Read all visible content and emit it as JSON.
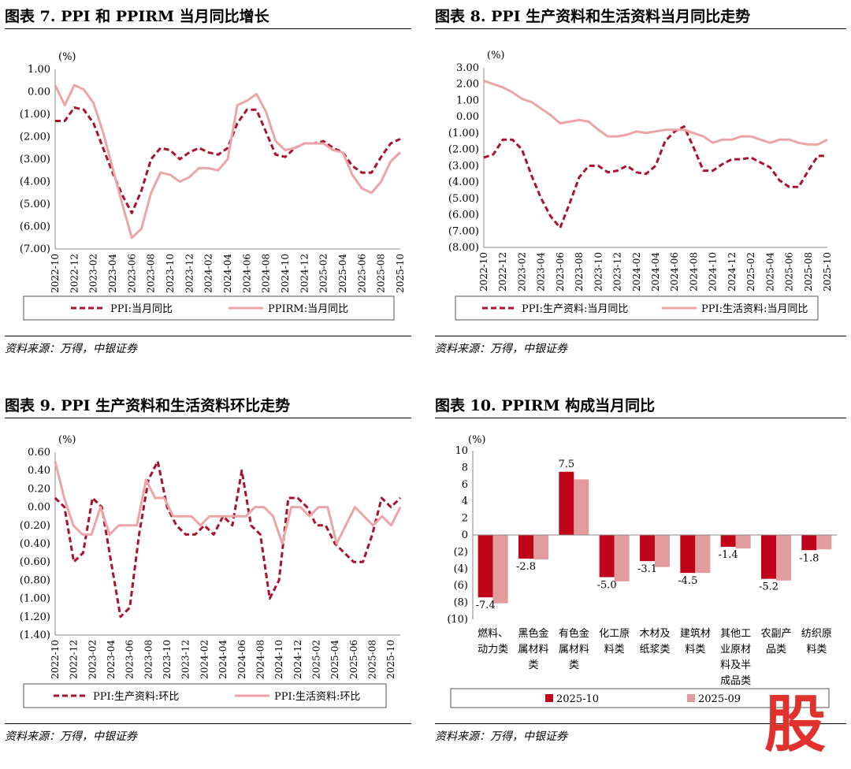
{
  "watermark": "股",
  "colors": {
    "dark": "#a8122f",
    "light": "#eca5a7",
    "bar_dark": "#c0051a",
    "bar_light": "#e39c9e"
  },
  "panels": [
    {
      "title": "图表 7. PPI 和 PPIRM 当月同比增长",
      "source": "资料来源：万得，中银证券",
      "chart_data": {
        "type": "line",
        "unit_label": "(%)",
        "ylim": [
          -7,
          1
        ],
        "ystep": 1,
        "x_tick_labels": [
          "2022-10",
          "2022-12",
          "2023-02",
          "2023-04",
          "2023-06",
          "2023-08",
          "2023-10",
          "2023-12",
          "2024-02",
          "2024-04",
          "2024-06",
          "2024-08",
          "2024-10",
          "2024-12",
          "2025-02",
          "2025-04",
          "2025-06",
          "2025-08",
          "2025-10"
        ],
        "series": [
          {
            "name": "PPI:当月同比",
            "style": "dashed",
            "values": [
              -1.3,
              -1.3,
              -0.7,
              -0.8,
              -1.4,
              -2.5,
              -3.6,
              -4.6,
              -5.4,
              -4.4,
              -3.0,
              -2.5,
              -2.6,
              -3.0,
              -2.7,
              -2.5,
              -2.7,
              -2.8,
              -2.5,
              -1.4,
              -0.8,
              -0.8,
              -1.8,
              -2.8,
              -2.9,
              -2.5,
              -2.3,
              -2.3,
              -2.2,
              -2.5,
              -2.7,
              -3.3,
              -3.6,
              -3.6,
              -2.9,
              -2.3,
              -2.1
            ]
          },
          {
            "name": "PPIRM:当月同比",
            "style": "solid",
            "values": [
              0.3,
              -0.6,
              0.3,
              0.1,
              -0.5,
              -1.8,
              -3.4,
              -5.0,
              -6.5,
              -6.1,
              -4.5,
              -3.6,
              -3.7,
              -4.0,
              -3.8,
              -3.4,
              -3.4,
              -3.5,
              -3.0,
              -0.6,
              -0.4,
              -0.1,
              -0.9,
              -2.2,
              -2.6,
              -2.5,
              -2.3,
              -2.3,
              -2.3,
              -2.6,
              -2.7,
              -3.7,
              -4.3,
              -4.5,
              -4.0,
              -3.1,
              -2.7
            ]
          }
        ]
      }
    },
    {
      "title": "图表 8. PPI 生产资料和生活资料当月同比走势",
      "source": "资料来源：万得，中银证券",
      "chart_data": {
        "type": "line",
        "unit_label": "(%)",
        "ylim": [
          -8,
          3
        ],
        "ystep": 1,
        "x_tick_labels": [
          "2022-10",
          "2022-12",
          "2023-02",
          "2023-04",
          "2023-06",
          "2023-08",
          "2023-10",
          "2023-12",
          "2024-02",
          "2024-04",
          "2024-06",
          "2024-08",
          "2024-10",
          "2024-12",
          "2025-02",
          "2025-04",
          "2025-06",
          "2025-08",
          "2025-10"
        ],
        "series": [
          {
            "name": "PPI:生产资料:当月同比",
            "style": "dashed",
            "values": [
              -2.5,
              -2.3,
              -1.4,
              -1.4,
              -2.0,
              -3.6,
              -5.0,
              -6.1,
              -6.8,
              -5.3,
              -3.7,
              -3.0,
              -3.0,
              -3.4,
              -3.3,
              -3.0,
              -3.4,
              -3.5,
              -3.0,
              -1.5,
              -0.9,
              -0.6,
              -1.9,
              -3.3,
              -3.3,
              -2.9,
              -2.6,
              -2.6,
              -2.5,
              -2.8,
              -3.1,
              -3.9,
              -4.3,
              -4.3,
              -3.3,
              -2.4,
              -2.4
            ]
          },
          {
            "name": "PPI:生活资料:当月同比",
            "style": "solid",
            "values": [
              2.2,
              2.0,
              1.8,
              1.5,
              1.1,
              0.9,
              0.5,
              0.1,
              -0.4,
              -0.3,
              -0.2,
              -0.3,
              -0.8,
              -1.2,
              -1.2,
              -1.1,
              -0.9,
              -1.0,
              -0.9,
              -0.8,
              -0.8,
              -0.8,
              -1.0,
              -1.2,
              -1.6,
              -1.4,
              -1.4,
              -1.2,
              -1.2,
              -1.4,
              -1.6,
              -1.4,
              -1.4,
              -1.6,
              -1.7,
              -1.7,
              -1.4
            ]
          }
        ]
      }
    },
    {
      "title": "图表 9. PPI 生产资料和生活资料环比走势",
      "source": "资料来源：万得，中银证券",
      "chart_data": {
        "type": "line",
        "unit_label": "(%)",
        "ylim": [
          -1.4,
          0.6
        ],
        "ystep": 0.2,
        "x_tick_labels": [
          "2022-10",
          "2022-12",
          "2023-02",
          "2023-04",
          "2023-06",
          "2023-08",
          "2023-10",
          "2023-12",
          "2024-02",
          "2024-04",
          "2024-06",
          "2024-08",
          "2024-10",
          "2024-12",
          "2025-02",
          "2025-04",
          "2025-06",
          "2025-08",
          "2025-10"
        ],
        "series": [
          {
            "name": "PPI:生产资料:环比",
            "style": "dashed",
            "values": [
              0.1,
              0.0,
              -0.6,
              -0.5,
              0.1,
              0.0,
              -0.6,
              -1.2,
              -1.1,
              -0.3,
              0.3,
              0.5,
              0.0,
              -0.2,
              -0.3,
              -0.3,
              -0.2,
              -0.3,
              -0.1,
              -0.2,
              0.4,
              -0.2,
              -0.3,
              -1.0,
              -0.8,
              0.1,
              0.1,
              0.0,
              -0.2,
              -0.2,
              -0.4,
              -0.5,
              -0.6,
              -0.6,
              -0.3,
              0.1,
              0.0,
              0.1
            ]
          },
          {
            "name": "PPI:生活资料:环比",
            "style": "solid",
            "values": [
              0.5,
              0.1,
              -0.2,
              -0.3,
              -0.3,
              0.0,
              -0.3,
              -0.2,
              -0.2,
              -0.2,
              0.3,
              0.1,
              0.1,
              -0.1,
              -0.1,
              -0.1,
              -0.2,
              -0.1,
              -0.1,
              -0.1,
              -0.1,
              -0.1,
              0.0,
              0.0,
              -0.1,
              -0.4,
              0.0,
              0.0,
              -0.1,
              0.0,
              0.0,
              -0.4,
              -0.2,
              0.0,
              -0.1,
              -0.2,
              -0.1,
              -0.2,
              0.0
            ]
          }
        ]
      }
    },
    {
      "title": "图表 10. PPIRM 构成当月同比",
      "source": "资料来源：万得，中银证券",
      "chart_data": {
        "type": "bar",
        "unit_label": "(%)",
        "ylim": [
          -10,
          10
        ],
        "ystep": 2,
        "categories": [
          [
            "燃料、",
            "动力类"
          ],
          [
            "黑色金",
            "属材料",
            "类"
          ],
          [
            "有色金",
            "属材料",
            "类"
          ],
          [
            "化工原",
            "料类"
          ],
          [
            "木材及",
            "纸浆类"
          ],
          [
            "建筑材",
            "料类"
          ],
          [
            "其他工",
            "业原材",
            "料及半",
            "成品类"
          ],
          [
            "农副产",
            "品类"
          ],
          [
            "纺织原",
            "料类"
          ]
        ],
        "series": [
          {
            "name": "2025-10",
            "values": [
              -7.4,
              -2.8,
              7.5,
              -5.0,
              -3.1,
              -4.5,
              -1.4,
              -5.2,
              -1.8
            ]
          },
          {
            "name": "2025-09",
            "values": [
              -8.1,
              -2.9,
              6.6,
              -5.5,
              -3.8,
              -4.5,
              -1.6,
              -5.4,
              -1.7
            ]
          }
        ],
        "data_labels": [
          "-7.4",
          "-2.8",
          "7.5",
          "-5.0",
          "-3.1",
          "-4.5",
          "-1.4",
          "-5.2",
          "-1.8"
        ]
      }
    }
  ]
}
